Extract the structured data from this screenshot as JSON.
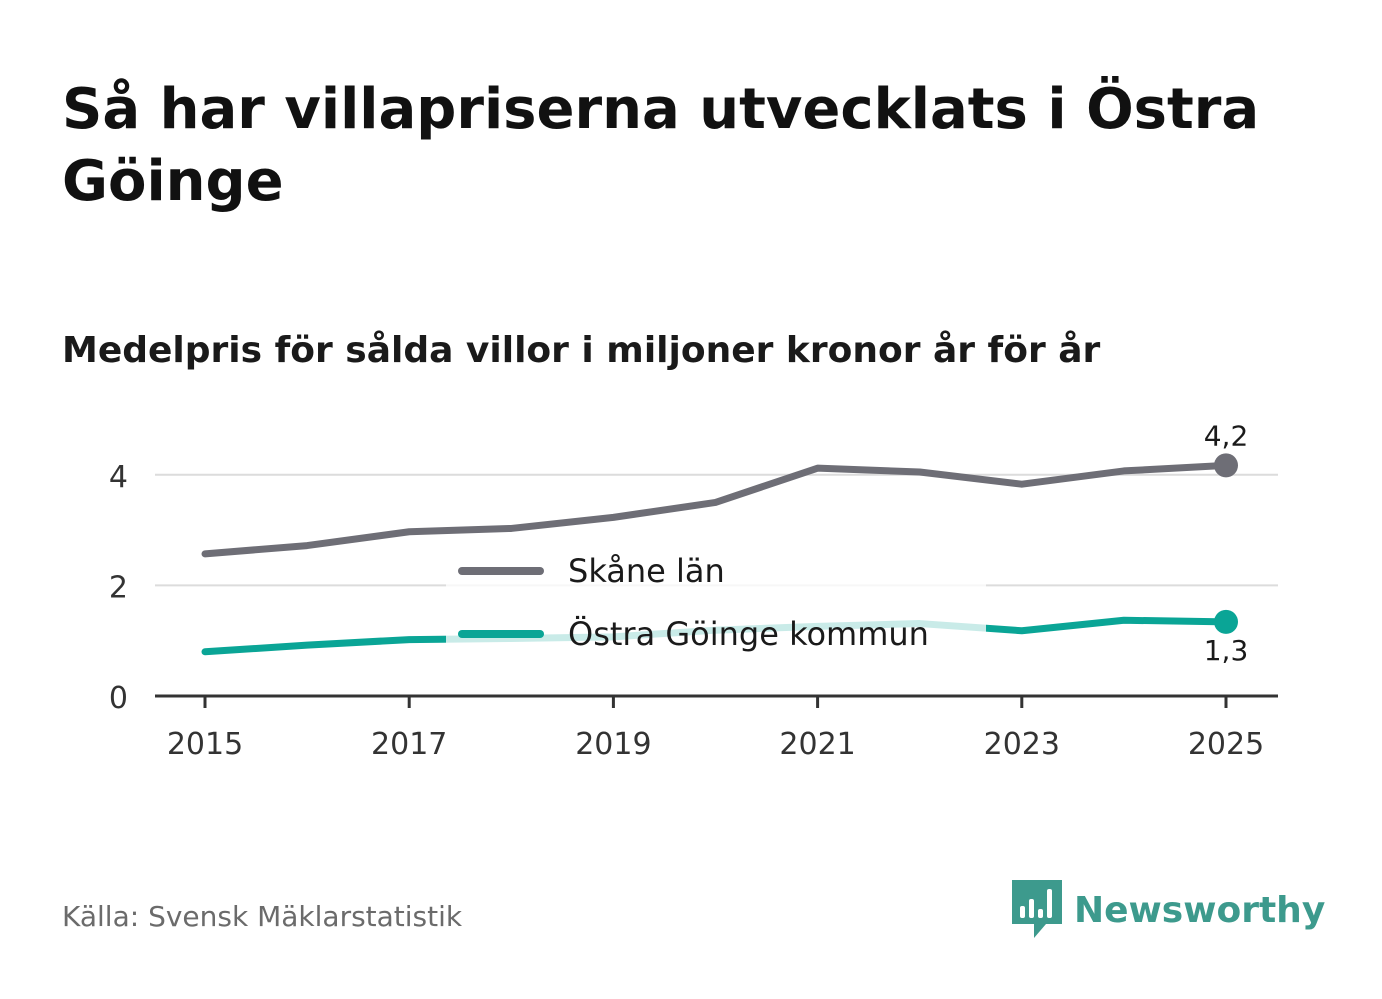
{
  "title": "Så har villapriserna utvecklats i Östra Göinge",
  "subtitle": "Medelpris för sålda villor i miljoner kronor år för år",
  "source": "Källa: Svensk Mäklarstatistik",
  "brand": {
    "name": "Newsworthy",
    "icon": "newsworthy-logo-icon",
    "color": "#3d9a8d"
  },
  "chart_data": {
    "type": "line",
    "x": [
      2015,
      2016,
      2017,
      2018,
      2019,
      2020,
      2021,
      2022,
      2023,
      2024,
      2025
    ],
    "x_ticks": [
      "2015",
      "2017",
      "2019",
      "2021",
      "2023",
      "2025"
    ],
    "y_ticks": [
      "0",
      "2",
      "4"
    ],
    "ylim": [
      0,
      5
    ],
    "grid": true,
    "legend_position": "center",
    "series": [
      {
        "name": "Skåne län",
        "color": "#6e6e76",
        "values": [
          2.57,
          2.72,
          2.97,
          3.03,
          3.23,
          3.5,
          4.12,
          4.05,
          3.83,
          4.07,
          4.17
        ],
        "end_label": "4,2"
      },
      {
        "name": "Östra Göinge kommun",
        "color": "#0aa596",
        "values": [
          0.8,
          0.92,
          1.02,
          1.04,
          1.07,
          1.19,
          1.26,
          1.31,
          1.18,
          1.37,
          1.34
        ],
        "end_label": "1,3"
      }
    ]
  }
}
